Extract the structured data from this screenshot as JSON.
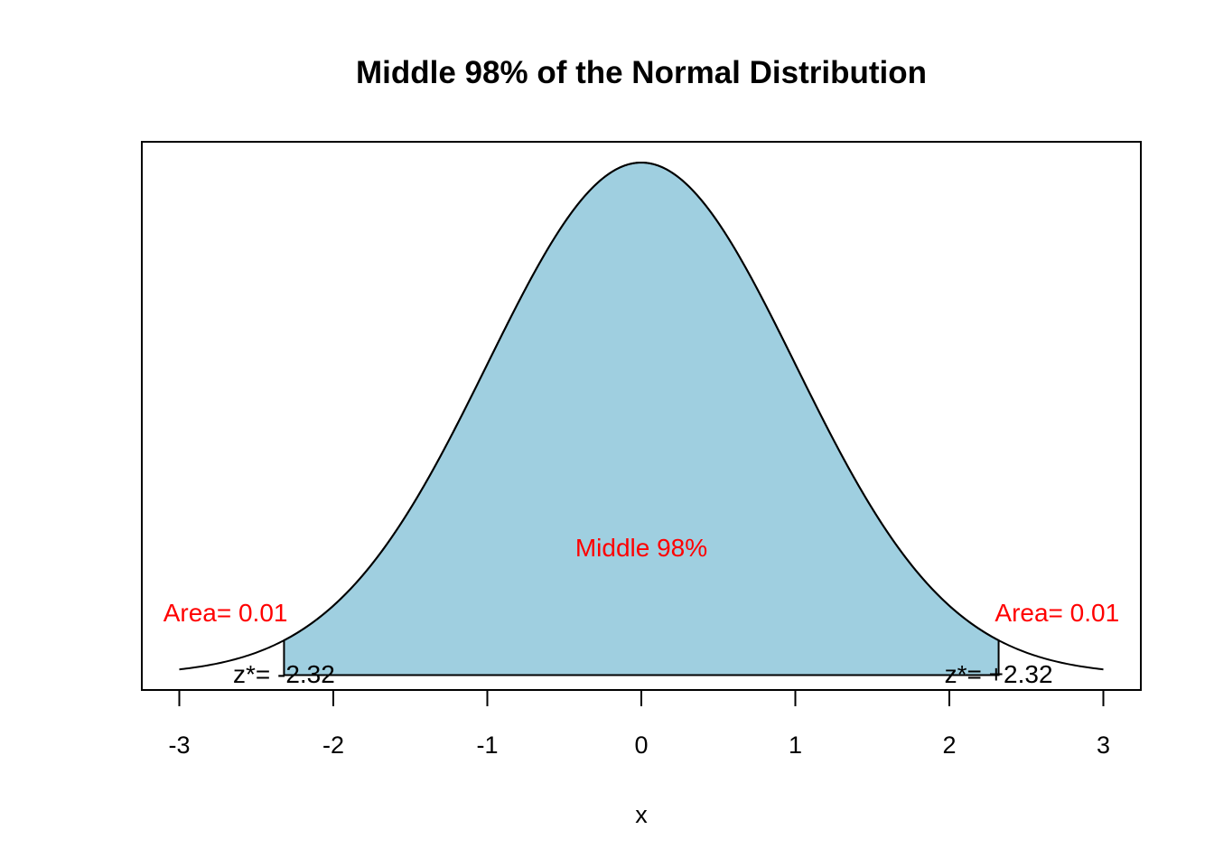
{
  "chart_data": {
    "type": "area",
    "title": "Middle 98% of the Normal Distribution",
    "xlabel": "x",
    "ylabel": "",
    "xlim": [
      -3,
      3
    ],
    "x_ticks": [
      "-3",
      "-2",
      "-1",
      "0",
      "1",
      "2",
      "3"
    ],
    "x_tick_values": [
      -3,
      -2,
      -1,
      0,
      1,
      2,
      3
    ],
    "distribution": {
      "name": "standard normal",
      "mean": 0,
      "sd": 1
    },
    "shaded_region": {
      "from": -2.32,
      "to": 2.32,
      "fill_color": "#9fcfe0"
    },
    "curve_color": "#000000",
    "annotation_color": "#ff0000",
    "annotations": {
      "middle": {
        "text": "Middle 98%",
        "x": 0
      },
      "left_area": {
        "text": "Area= 0.01",
        "x": -2.7
      },
      "right_area": {
        "text": "Area= 0.01",
        "x": 2.7
      },
      "left_z": {
        "text": "z*= -2.32",
        "x": -2.32
      },
      "right_z": {
        "text": "z*= +2.32",
        "x": 2.32
      }
    },
    "grid": false,
    "legend": "none"
  }
}
